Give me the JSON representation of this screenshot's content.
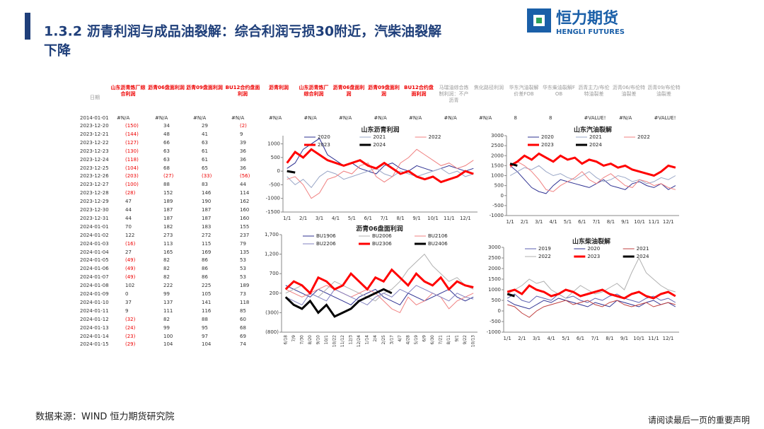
{
  "header": {
    "title_line1": "1.3.2 沥青利润与成品油裂解：综合利润亏损30附近，汽柴油裂解",
    "title_line2": "下降",
    "logo_cn": "恒力期货",
    "logo_en": "HENGLI FUTURES"
  },
  "table": {
    "columns": [
      "日期",
      "山东沥青炼厂综合利润",
      "沥青06盘面利润",
      "沥青09盘面利润",
      "BU12合约盘面利润",
      "沥青利润",
      "山东沥青炼厂综合利润",
      "沥青06盘面利润",
      "沥青09盘面利润",
      "BU12合约盘面利润",
      "马瑞油综合炼制利润：不产沥青",
      "焦化路径利润",
      "华东汽油裂解价差FOB",
      "华东柴油裂解FOB",
      "沥青主力/布伦特油裂差",
      "沥青06/布伦特油裂差",
      "沥青09/布伦特油裂差"
    ],
    "first_row": [
      "2014-01-01",
      "#N/A",
      "#N/A",
      "#N/A",
      "#N/A",
      "#N/A",
      "#N/A",
      "#N/A",
      "#N/A",
      "#N/A",
      "#N/A",
      "#N/A",
      "8",
      "8",
      "#VALUE!",
      "#N/A",
      "#VALUE!"
    ],
    "rows": [
      [
        "2023-12-20",
        "(150)",
        "34",
        "29",
        "(2)"
      ],
      [
        "2023-12-21",
        "(144)",
        "48",
        "41",
        "9"
      ],
      [
        "2023-12-22",
        "(127)",
        "66",
        "63",
        "39"
      ],
      [
        "2023-12-23",
        "(130)",
        "63",
        "61",
        "36"
      ],
      [
        "2023-12-24",
        "(118)",
        "63",
        "61",
        "36"
      ],
      [
        "2023-12-25",
        "(104)",
        "68",
        "65",
        "36"
      ],
      [
        "2023-12-26",
        "(203)",
        "(27)",
        "(33)",
        "(56)"
      ],
      [
        "2023-12-27",
        "(100)",
        "88",
        "83",
        "44"
      ],
      [
        "2023-12-28",
        "(28)",
        "152",
        "146",
        "114"
      ],
      [
        "2023-12-29",
        "47",
        "189",
        "190",
        "162"
      ],
      [
        "2023-12-30",
        "44",
        "187",
        "187",
        "160"
      ],
      [
        "2023-12-31",
        "44",
        "187",
        "187",
        "160"
      ],
      [
        "2024-01-01",
        "70",
        "182",
        "183",
        "155"
      ],
      [
        "2024-01-02",
        "122",
        "273",
        "272",
        "237"
      ],
      [
        "2024-01-03",
        "(16)",
        "113",
        "115",
        "79"
      ],
      [
        "2024-01-04",
        "27",
        "165",
        "169",
        "135"
      ],
      [
        "2024-01-05",
        "(49)",
        "82",
        "86",
        "53"
      ],
      [
        "2024-01-06",
        "(49)",
        "82",
        "86",
        "53"
      ],
      [
        "2024-01-07",
        "(49)",
        "82",
        "86",
        "53"
      ],
      [
        "2024-01-08",
        "102",
        "222",
        "225",
        "189"
      ],
      [
        "2024-01-09",
        "0",
        "99",
        "105",
        "73"
      ],
      [
        "2024-01-10",
        "37",
        "137",
        "141",
        "118"
      ],
      [
        "2024-01-11",
        "9",
        "111",
        "116",
        "85"
      ],
      [
        "2024-01-12",
        "(32)",
        "82",
        "88",
        "60"
      ],
      [
        "2024-01-13",
        "(24)",
        "99",
        "95",
        "68"
      ],
      [
        "2024-01-14",
        "(23)",
        "100",
        "97",
        "69"
      ],
      [
        "2024-01-15",
        "(29)",
        "104",
        "104",
        "74"
      ]
    ]
  },
  "chart_data": [
    {
      "type": "line",
      "title": "山东沥青利润",
      "categories": [
        "1/1",
        null,
        "2/1",
        null,
        "3/1",
        null,
        "4/1",
        null,
        "5/1",
        null,
        "6/1",
        null,
        "7/1",
        null,
        "8/1",
        null,
        "9/1",
        null,
        "10/1",
        null,
        "11/1",
        null,
        "12/1",
        null
      ],
      "ylim": [
        -1500,
        1300
      ],
      "yticks": [
        -1500,
        -1000,
        -500,
        0,
        500,
        1000
      ],
      "grid": false,
      "series": [
        {
          "name": "2020",
          "color": "#2e3192",
          "line_width": 1,
          "values": [
            100,
            300,
            800,
            1000,
            1200,
            600,
            400,
            200,
            300,
            100,
            0,
            -100,
            200,
            300,
            100,
            0,
            200,
            100,
            0,
            100,
            200,
            100,
            0,
            100
          ]
        },
        {
          "name": "2021",
          "color": "#9aa7c7",
          "line_width": 1,
          "values": [
            -200,
            -500,
            -300,
            -600,
            -200,
            0,
            -100,
            -300,
            -200,
            -100,
            0,
            100,
            -100,
            -200,
            0,
            -100,
            -200,
            -100,
            0,
            100,
            -100,
            0,
            -200,
            -100
          ]
        },
        {
          "name": "2022",
          "color": "#f08080",
          "line_width": 1,
          "values": [
            -300,
            -200,
            -500,
            -1000,
            -800,
            -300,
            -200,
            0,
            -100,
            200,
            300,
            -200,
            -400,
            -200,
            300,
            500,
            800,
            600,
            400,
            200,
            300,
            100,
            200,
            400
          ]
        },
        {
          "name": "2023",
          "color": "#ff0000",
          "line_width": 3,
          "values": [
            300,
            700,
            500,
            800,
            600,
            400,
            300,
            200,
            300,
            400,
            200,
            100,
            300,
            100,
            -100,
            0,
            -200,
            -300,
            -200,
            -400,
            -300,
            -200,
            0,
            -100
          ]
        },
        {
          "name": "2024",
          "color": "#000000",
          "line_width": 3,
          "values": [
            0,
            -50,
            null,
            null,
            null,
            null,
            null,
            null,
            null,
            null,
            null,
            null,
            null,
            null,
            null,
            null,
            null,
            null,
            null,
            null,
            null,
            null,
            null,
            null
          ]
        }
      ]
    },
    {
      "type": "line",
      "title": "山东汽油裂解",
      "categories": [
        "1/1",
        null,
        "2/1",
        null,
        "3/1",
        null,
        "4/1",
        null,
        "5/1",
        null,
        "6/1",
        null,
        "7/1",
        null,
        "8/1",
        null,
        "9/1",
        null,
        "10/1",
        null,
        "11/1",
        null,
        "12/1",
        null
      ],
      "ylim": [
        -1000,
        3000
      ],
      "yticks": [
        -1000,
        -500,
        0,
        500,
        1000,
        1500,
        2000,
        2500,
        3000
      ],
      "grid": false,
      "series": [
        {
          "name": "2020",
          "color": "#2e3192",
          "line_width": 1,
          "values": [
            1500,
            1200,
            800,
            400,
            200,
            100,
            500,
            800,
            700,
            600,
            500,
            400,
            600,
            800,
            500,
            400,
            300,
            600,
            700,
            500,
            400,
            600,
            300,
            500
          ]
        },
        {
          "name": "2021",
          "color": "#9aa7c7",
          "line_width": 1,
          "values": [
            1000,
            1200,
            1400,
            1300,
            1500,
            1200,
            1000,
            1100,
            900,
            800,
            1000,
            1200,
            900,
            700,
            800,
            1000,
            900,
            700,
            800,
            600,
            700,
            900,
            800,
            1000
          ]
        },
        {
          "name": "2022",
          "color": "#f08080",
          "line_width": 1,
          "values": [
            1400,
            1700,
            1500,
            1200,
            800,
            300,
            200,
            500,
            700,
            900,
            1200,
            800,
            600,
            900,
            1100,
            800,
            500,
            400,
            800,
            700,
            500,
            600,
            400,
            300
          ]
        },
        {
          "name": "2023",
          "color": "#ff0000",
          "line_width": 3,
          "values": [
            1500,
            1700,
            2000,
            1800,
            2100,
            1900,
            1700,
            2000,
            1800,
            1900,
            1600,
            1800,
            1700,
            1500,
            1600,
            1400,
            1500,
            1300,
            1200,
            1100,
            1000,
            1200,
            1500,
            1400
          ]
        },
        {
          "name": "2024",
          "color": "#000000",
          "line_width": 3,
          "values": [
            1600,
            1500,
            null,
            null,
            null,
            null,
            null,
            null,
            null,
            null,
            null,
            null,
            null,
            null,
            null,
            null,
            null,
            null,
            null,
            null,
            null,
            null,
            null,
            null
          ]
        }
      ]
    },
    {
      "type": "line",
      "title": "沥青06盘面利润",
      "categories": [
        "6/18",
        "7/9",
        "7/30",
        "8/20",
        "9/10",
        "10/1",
        "10/22",
        "11/12",
        "12/3",
        "12/24",
        "1/14",
        "2/4",
        "2/25",
        "3/17",
        "4/7",
        "4/28",
        "5/19",
        "6/9",
        "6/30",
        "7/21",
        "8/11",
        "9/1",
        "9/22",
        "10/13"
      ],
      "ylim": [
        -800,
        1700
      ],
      "yticks": [
        {
          "value": -800,
          "label": "(800)"
        },
        {
          "value": -300,
          "label": "(300)"
        },
        200,
        700,
        {
          "value": 1200,
          "label": "1,200"
        },
        {
          "value": 1700,
          "label": "1,700"
        }
      ],
      "grid": false,
      "series": [
        {
          "name": "BU1906",
          "color": "#2e3192",
          "line_width": 1,
          "values": [
            400,
            300,
            200,
            100,
            300,
            200,
            100,
            0,
            -100,
            100,
            200,
            300,
            100,
            0,
            -100,
            200,
            100,
            0,
            100,
            200,
            300,
            100,
            0,
            100
          ]
        },
        {
          "name": "BU2006",
          "color": "#b0b0b0",
          "line_width": 1,
          "values": [
            200,
            300,
            400,
            200,
            100,
            300,
            500,
            400,
            300,
            200,
            100,
            0,
            200,
            300,
            500,
            800,
            1000,
            1200,
            900,
            700,
            500,
            600,
            400,
            300
          ]
        },
        {
          "name": "BU2106",
          "color": "#f08080",
          "line_width": 1,
          "values": [
            300,
            200,
            100,
            200,
            300,
            400,
            300,
            200,
            100,
            200,
            300,
            200,
            0,
            -200,
            -300,
            100,
            -100,
            0,
            200,
            100,
            -200,
            0,
            100,
            200
          ]
        },
        {
          "name": "BU2206",
          "color": "#8080c0",
          "line_width": 1,
          "values": [
            100,
            0,
            -100,
            200,
            100,
            0,
            300,
            200,
            100,
            0,
            -100,
            100,
            200,
            100,
            300,
            200,
            400,
            300,
            200,
            100,
            0,
            200,
            100,
            50
          ]
        },
        {
          "name": "BU2306",
          "color": "#ff0000",
          "line_width": 3,
          "values": [
            300,
            500,
            400,
            200,
            600,
            500,
            300,
            400,
            700,
            500,
            300,
            600,
            500,
            800,
            600,
            400,
            700,
            500,
            400,
            600,
            300,
            500,
            400,
            350
          ]
        },
        {
          "name": "BU2406",
          "color": "#000000",
          "line_width": 3,
          "values": [
            100,
            -100,
            -200,
            0,
            -300,
            -100,
            -400,
            -300,
            -200,
            0,
            100,
            200,
            300,
            200,
            null,
            null,
            null,
            null,
            null,
            null,
            null,
            null,
            null,
            null
          ]
        }
      ]
    },
    {
      "type": "line",
      "title": "山东柴油裂解",
      "categories": [
        "1/1",
        null,
        "2/1",
        null,
        "3/1",
        null,
        "4/1",
        null,
        "5/1",
        null,
        "6/1",
        null,
        "7/1",
        null,
        "8/1",
        null,
        "9/1",
        null,
        "10/1",
        null,
        "11/1",
        null,
        "12/1",
        null
      ],
      "ylim": [
        -1000,
        3000
      ],
      "yticks": [
        -1000,
        -500,
        0,
        500,
        1000,
        1500,
        2000,
        2500,
        3000
      ],
      "grid": false,
      "series": [
        {
          "name": "2019",
          "color": "#5b5fb0",
          "line_width": 1,
          "values": [
            600,
            800,
            500,
            400,
            700,
            600,
            500,
            800,
            600,
            700,
            500,
            400,
            600,
            500,
            700,
            800,
            600,
            500,
            400,
            600,
            700,
            500,
            600,
            400
          ]
        },
        {
          "name": "2020",
          "color": "#2e3192",
          "line_width": 1,
          "values": [
            500,
            300,
            200,
            100,
            300,
            500,
            400,
            600,
            500,
            400,
            300,
            200,
            400,
            300,
            200,
            500,
            400,
            300,
            200,
            400,
            500,
            300,
            400,
            200
          ]
        },
        {
          "name": "2021",
          "color": "#c04040",
          "line_width": 1,
          "values": [
            300,
            200,
            -100,
            -300,
            0,
            200,
            300,
            400,
            500,
            300,
            400,
            500,
            300,
            200,
            400,
            500,
            300,
            200,
            300,
            400,
            200,
            300,
            400,
            300
          ]
        },
        {
          "name": "2022",
          "color": "#b0b0b0",
          "line_width": 1,
          "values": [
            800,
            1000,
            1200,
            1500,
            1300,
            1400,
            1000,
            800,
            600,
            900,
            1200,
            1000,
            800,
            900,
            1100,
            1300,
            1000,
            1800,
            2500,
            1800,
            1500,
            1200,
            1000,
            900
          ]
        },
        {
          "name": "2023",
          "color": "#ff0000",
          "line_width": 3,
          "values": [
            900,
            1000,
            800,
            1200,
            1000,
            900,
            700,
            800,
            1000,
            900,
            700,
            800,
            900,
            1000,
            800,
            700,
            600,
            800,
            900,
            700,
            600,
            800,
            900,
            700
          ]
        },
        {
          "name": "2024",
          "color": "#000000",
          "line_width": 3,
          "values": [
            800,
            700,
            null,
            null,
            null,
            null,
            null,
            null,
            null,
            null,
            null,
            null,
            null,
            null,
            null,
            null,
            null,
            null,
            null,
            null,
            null,
            null,
            null,
            null
          ]
        }
      ]
    }
  ],
  "footer": {
    "source": "数据来源：WIND 恒力期货研究院",
    "notice": "请阅读最后一页的重要声明"
  }
}
